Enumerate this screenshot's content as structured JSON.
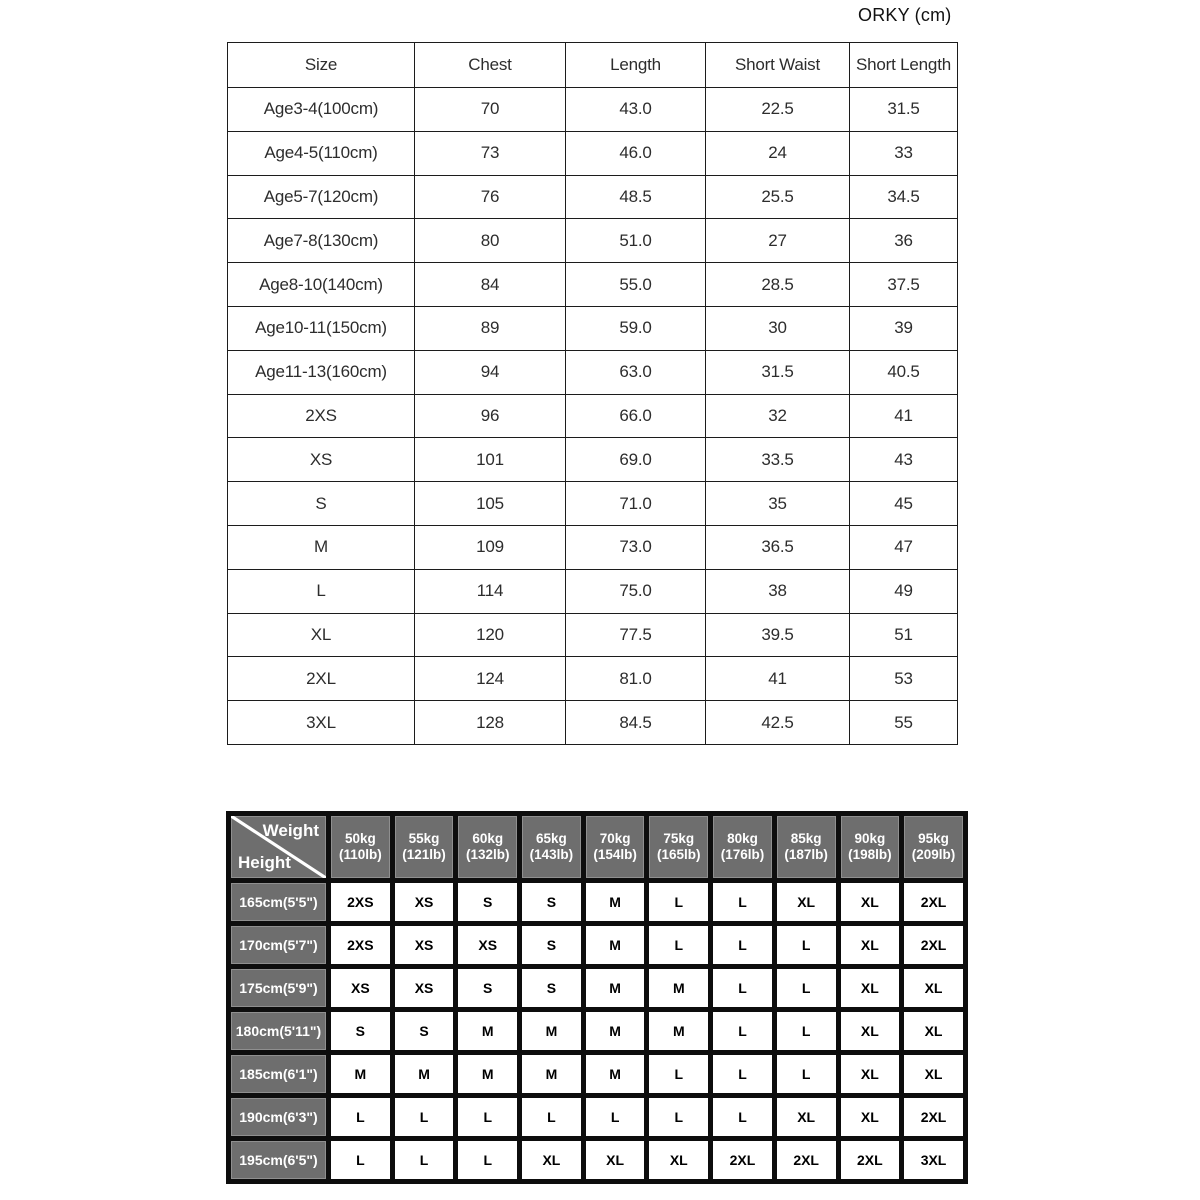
{
  "title": "ORKY (cm)",
  "size_table": {
    "columns": [
      "Size",
      "Chest",
      "Length",
      "Short Waist",
      "Short Length"
    ],
    "rows": [
      [
        "Age3-4(100cm)",
        "70",
        "43.0",
        "22.5",
        "31.5"
      ],
      [
        "Age4-5(110cm)",
        "73",
        "46.0",
        "24",
        "33"
      ],
      [
        "Age5-7(120cm)",
        "76",
        "48.5",
        "25.5",
        "34.5"
      ],
      [
        "Age7-8(130cm)",
        "80",
        "51.0",
        "27",
        "36"
      ],
      [
        "Age8-10(140cm)",
        "84",
        "55.0",
        "28.5",
        "37.5"
      ],
      [
        "Age10-11(150cm)",
        "89",
        "59.0",
        "30",
        "39"
      ],
      [
        "Age11-13(160cm)",
        "94",
        "63.0",
        "31.5",
        "40.5"
      ],
      [
        "2XS",
        "96",
        "66.0",
        "32",
        "41"
      ],
      [
        "XS",
        "101",
        "69.0",
        "33.5",
        "43"
      ],
      [
        "S",
        "105",
        "71.0",
        "35",
        "45"
      ],
      [
        "M",
        "109",
        "73.0",
        "36.5",
        "47"
      ],
      [
        "L",
        "114",
        "75.0",
        "38",
        "49"
      ],
      [
        "XL",
        "120",
        "77.5",
        "39.5",
        "51"
      ],
      [
        "2XL",
        "124",
        "81.0",
        "41",
        "53"
      ],
      [
        "3XL",
        "128",
        "84.5",
        "42.5",
        "55"
      ]
    ]
  },
  "fit_table": {
    "corner": {
      "top_label": "Weight",
      "bottom_label": "Height"
    },
    "weight_columns": [
      {
        "kg": "50kg",
        "lb": "(110lb)"
      },
      {
        "kg": "55kg",
        "lb": "(121lb)"
      },
      {
        "kg": "60kg",
        "lb": "(132lb)"
      },
      {
        "kg": "65kg",
        "lb": "(143lb)"
      },
      {
        "kg": "70kg",
        "lb": "(154lb)"
      },
      {
        "kg": "75kg",
        "lb": "(165lb)"
      },
      {
        "kg": "80kg",
        "lb": "(176lb)"
      },
      {
        "kg": "85kg",
        "lb": "(187lb)"
      },
      {
        "kg": "90kg",
        "lb": "(198lb)"
      },
      {
        "kg": "95kg",
        "lb": "(209lb)"
      }
    ],
    "rows": [
      {
        "height": "165cm(5'5\")",
        "sizes": [
          "2XS",
          "XS",
          "S",
          "S",
          "M",
          "L",
          "L",
          "XL",
          "XL",
          "2XL"
        ]
      },
      {
        "height": "170cm(5'7\")",
        "sizes": [
          "2XS",
          "XS",
          "XS",
          "S",
          "M",
          "L",
          "L",
          "L",
          "XL",
          "2XL"
        ]
      },
      {
        "height": "175cm(5'9\")",
        "sizes": [
          "XS",
          "XS",
          "S",
          "S",
          "M",
          "M",
          "L",
          "L",
          "XL",
          "XL"
        ]
      },
      {
        "height": "180cm(5'11\")",
        "sizes": [
          "S",
          "S",
          "M",
          "M",
          "M",
          "M",
          "L",
          "L",
          "XL",
          "XL"
        ]
      },
      {
        "height": "185cm(6'1\")",
        "sizes": [
          "M",
          "M",
          "M",
          "M",
          "M",
          "L",
          "L",
          "L",
          "XL",
          "XL"
        ]
      },
      {
        "height": "190cm(6'3\")",
        "sizes": [
          "L",
          "L",
          "L",
          "L",
          "L",
          "L",
          "L",
          "XL",
          "XL",
          "2XL"
        ]
      },
      {
        "height": "195cm(6'5\")",
        "sizes": [
          "L",
          "L",
          "L",
          "XL",
          "XL",
          "XL",
          "2XL",
          "2XL",
          "2XL",
          "3XL"
        ]
      }
    ]
  },
  "colors": {
    "page_background": "#ffffff",
    "table_text": "#2d2d2d",
    "table_border": "#1c1c1c",
    "fit_table_background": "#0d0d0d",
    "fit_header_gray": "#6e6e6e",
    "fit_header_text": "#ffffff"
  }
}
